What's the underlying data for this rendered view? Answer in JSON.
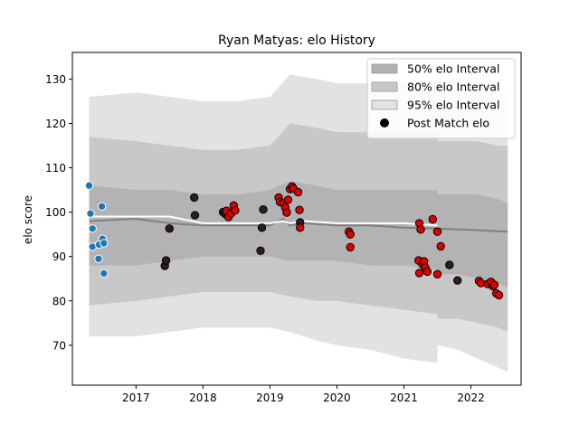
{
  "chart_data": {
    "type": "scatter",
    "title": "Ryan Matyas: elo History",
    "xlabel": "",
    "ylabel": "elo score",
    "xlim": [
      2016.05,
      2022.75
    ],
    "ylim": [
      61,
      136
    ],
    "x_ticks": [
      2017,
      2018,
      2019,
      2020,
      2021,
      2022
    ],
    "y_ticks": [
      70,
      80,
      90,
      100,
      110,
      120,
      130
    ],
    "legend_position": "top-right",
    "legend": [
      {
        "label": "50% elo Interval",
        "color": "#b3b3b3",
        "kind": "patch"
      },
      {
        "label": "80% elo Interval",
        "color": "#c8c8c8",
        "kind": "patch"
      },
      {
        "label": "95% elo Interval",
        "color": "#e2e2e2",
        "kind": "patch"
      },
      {
        "label": "Post Match elo",
        "color": "#000000",
        "kind": "marker"
      }
    ],
    "colors": {
      "band50": "#b3b3b3",
      "band80": "#c8c8c8",
      "band95": "#e2e2e2",
      "mean_line": "#808080",
      "white_line": "#ffffff",
      "blue_points": "#1f77b4",
      "dark_points": "#2e1a2a",
      "red_points": "#e00000"
    },
    "bands_main": {
      "x": [
        2016.3,
        2017.0,
        2017.5,
        2018.0,
        2018.5,
        2019.0,
        2019.3,
        2019.7,
        2020.0,
        2020.5,
        2021.0,
        2021.5
      ],
      "lo95": [
        72,
        72,
        73,
        74,
        74,
        74,
        73,
        71,
        70,
        69,
        67,
        66
      ],
      "lo80": [
        79,
        80,
        81,
        82,
        82,
        82,
        81,
        80,
        80,
        79,
        78,
        77
      ],
      "lo50": [
        88,
        88,
        89,
        90,
        90,
        90,
        89,
        89,
        89,
        88,
        88,
        87
      ],
      "hi50": [
        106,
        105,
        105,
        104,
        104,
        105,
        107,
        106,
        105,
        105,
        105,
        105
      ],
      "hi80": [
        117,
        116,
        115,
        114,
        114,
        115,
        120,
        119,
        118,
        118,
        118,
        118
      ],
      "hi95": [
        126,
        127,
        126,
        125,
        125,
        126,
        131,
        130,
        129,
        129,
        129,
        130
      ]
    },
    "bands_tail": {
      "x": [
        2021.5,
        2021.8,
        2022.1,
        2022.4,
        2022.55
      ],
      "lo95": [
        70,
        69,
        67,
        65,
        64
      ],
      "lo80": [
        76,
        76,
        75,
        74,
        73
      ],
      "lo50": [
        86,
        86,
        85,
        84,
        83
      ],
      "hi50": [
        104,
        104,
        104,
        103,
        102
      ],
      "hi80": [
        116,
        116,
        116,
        115,
        115
      ],
      "hi95": [
        128,
        128,
        127,
        127,
        127
      ]
    },
    "mean_line": {
      "x": [
        2016.3,
        2017.0,
        2017.5,
        2018.0,
        2018.5,
        2019.0,
        2019.2,
        2019.3,
        2019.5,
        2020.0,
        2020.5,
        2021.0,
        2021.5,
        2022.0,
        2022.55
      ],
      "y": [
        98,
        98.5,
        97.5,
        97,
        97,
        97,
        98.5,
        97,
        97.5,
        97,
        97,
        96.5,
        96.3,
        96,
        95.6
      ]
    },
    "white_line": {
      "x": [
        2016.3,
        2017.0,
        2017.5,
        2018.0,
        2018.5,
        2019.0,
        2019.2,
        2019.3,
        2019.5,
        2020.0,
        2020.5,
        2021.0,
        2021.5
      ],
      "y": [
        99,
        99,
        99,
        97.5,
        97.5,
        97.5,
        98,
        97.5,
        98,
        97.5,
        97.5,
        97.5,
        97
      ]
    },
    "series": [
      {
        "color_key": "blue_points",
        "points": [
          {
            "x": 2016.3,
            "y": 106
          },
          {
            "x": 2016.32,
            "y": 99.7
          },
          {
            "x": 2016.35,
            "y": 96.3
          },
          {
            "x": 2016.35,
            "y": 92.2
          },
          {
            "x": 2016.44,
            "y": 89.5
          },
          {
            "x": 2016.45,
            "y": 92.7
          },
          {
            "x": 2016.49,
            "y": 101.3
          },
          {
            "x": 2016.5,
            "y": 94
          },
          {
            "x": 2016.52,
            "y": 93
          },
          {
            "x": 2016.52,
            "y": 86.2
          }
        ]
      },
      {
        "color_key": "dark_points",
        "points": [
          {
            "x": 2017.43,
            "y": 87.9
          },
          {
            "x": 2017.45,
            "y": 89.1
          },
          {
            "x": 2017.5,
            "y": 96.3
          },
          {
            "x": 2017.87,
            "y": 103.3
          },
          {
            "x": 2017.88,
            "y": 99.3
          },
          {
            "x": 2018.3,
            "y": 100
          },
          {
            "x": 2018.33,
            "y": 99.6
          },
          {
            "x": 2018.86,
            "y": 91.3
          },
          {
            "x": 2018.88,
            "y": 96.5
          },
          {
            "x": 2018.9,
            "y": 100.6
          },
          {
            "x": 2019.45,
            "y": 97.7
          },
          {
            "x": 2021.68,
            "y": 88.1
          },
          {
            "x": 2021.8,
            "y": 84.6
          }
        ]
      },
      {
        "color_key": "red_points",
        "points": [
          {
            "x": 2018.35,
            "y": 100.3
          },
          {
            "x": 2018.38,
            "y": 98.9
          },
          {
            "x": 2018.42,
            "y": 99.7
          },
          {
            "x": 2018.46,
            "y": 101.5
          },
          {
            "x": 2018.48,
            "y": 100.4
          },
          {
            "x": 2019.13,
            "y": 103.3
          },
          {
            "x": 2019.15,
            "y": 102.3
          },
          {
            "x": 2019.2,
            "y": 102
          },
          {
            "x": 2019.23,
            "y": 101
          },
          {
            "x": 2019.25,
            "y": 99.9
          },
          {
            "x": 2019.27,
            "y": 102.8
          },
          {
            "x": 2019.3,
            "y": 105.2
          },
          {
            "x": 2019.33,
            "y": 105.8
          },
          {
            "x": 2019.35,
            "y": 105.3
          },
          {
            "x": 2019.42,
            "y": 104.5
          },
          {
            "x": 2019.44,
            "y": 100.5
          },
          {
            "x": 2019.45,
            "y": 96.5
          },
          {
            "x": 2020.18,
            "y": 95.6
          },
          {
            "x": 2020.2,
            "y": 95
          },
          {
            "x": 2020.2,
            "y": 92.1
          },
          {
            "x": 2021.23,
            "y": 97.5
          },
          {
            "x": 2021.25,
            "y": 96.1
          },
          {
            "x": 2021.22,
            "y": 89.1
          },
          {
            "x": 2021.23,
            "y": 86.3
          },
          {
            "x": 2021.28,
            "y": 88.2
          },
          {
            "x": 2021.3,
            "y": 88.9
          },
          {
            "x": 2021.32,
            "y": 87.5
          },
          {
            "x": 2021.35,
            "y": 86.6
          },
          {
            "x": 2021.43,
            "y": 98.4
          },
          {
            "x": 2021.5,
            "y": 95.6
          },
          {
            "x": 2021.5,
            "y": 86
          },
          {
            "x": 2021.55,
            "y": 92.3
          },
          {
            "x": 2022.12,
            "y": 84.5
          },
          {
            "x": 2022.15,
            "y": 84
          },
          {
            "x": 2022.25,
            "y": 83.8
          },
          {
            "x": 2022.3,
            "y": 84.3
          },
          {
            "x": 2022.33,
            "y": 83.3
          },
          {
            "x": 2022.35,
            "y": 83.6
          },
          {
            "x": 2022.38,
            "y": 81.7
          },
          {
            "x": 2022.42,
            "y": 81.3
          }
        ]
      }
    ]
  }
}
